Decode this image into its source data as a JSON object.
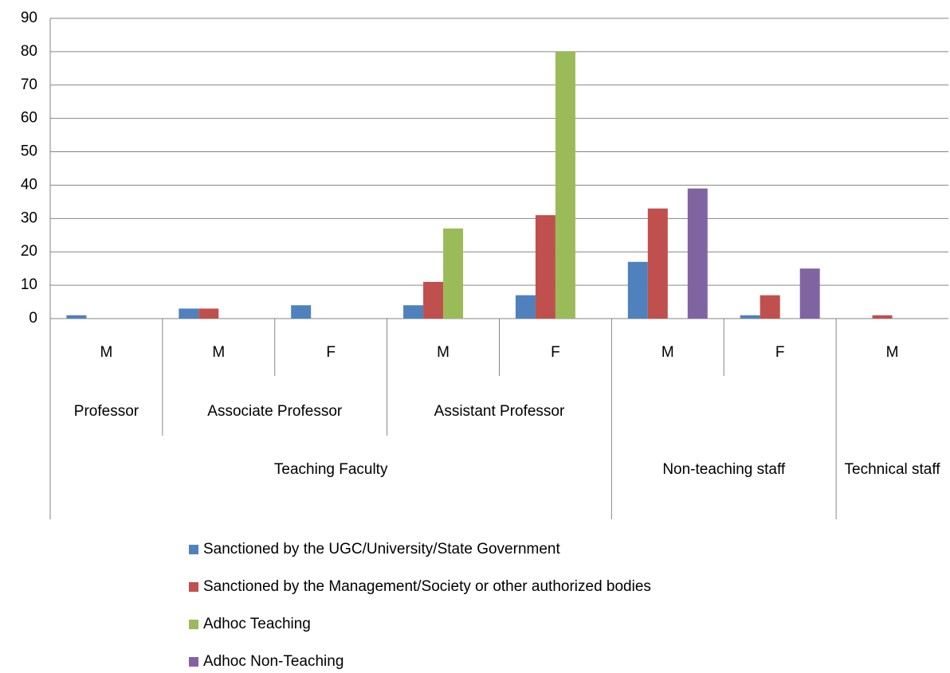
{
  "chart_data": {
    "type": "bar",
    "categories": [
      "M",
      "M",
      "F",
      "M",
      "F",
      "M",
      "F",
      "M"
    ],
    "category_levels": [
      [
        "Professor",
        "Associate Professor",
        "Associate Professor",
        "Assistant Professor",
        "Assistant Professor",
        null,
        null,
        null
      ],
      [
        "Teaching Faculty",
        "Teaching Faculty",
        "Teaching Faculty",
        "Teaching Faculty",
        "Teaching Faculty",
        "Non-teaching staff",
        "Non-teaching staff",
        "Technical staff"
      ]
    ],
    "series": [
      {
        "name": "Sanctioned by the UGC/University/State Government",
        "color": "#4f81bd",
        "values": [
          1,
          3,
          4,
          4,
          7,
          17,
          1,
          0
        ]
      },
      {
        "name": "Sanctioned by the Management/Society or other authorized bodies",
        "color": "#c0504d",
        "values": [
          0,
          3,
          0,
          11,
          31,
          33,
          7,
          1
        ]
      },
      {
        "name": "Adhoc Teaching",
        "color": "#9bbb59",
        "values": [
          0,
          0,
          0,
          27,
          80,
          0,
          0,
          0
        ]
      },
      {
        "name": "Adhoc Non-Teaching",
        "color": "#8064a2",
        "values": [
          0,
          0,
          0,
          0,
          0,
          39,
          15,
          0
        ]
      }
    ],
    "ylim": [
      0,
      90
    ],
    "yticks": [
      0,
      10,
      20,
      30,
      40,
      50,
      60,
      70,
      80,
      90
    ],
    "grid": true,
    "legend": "bottom"
  }
}
